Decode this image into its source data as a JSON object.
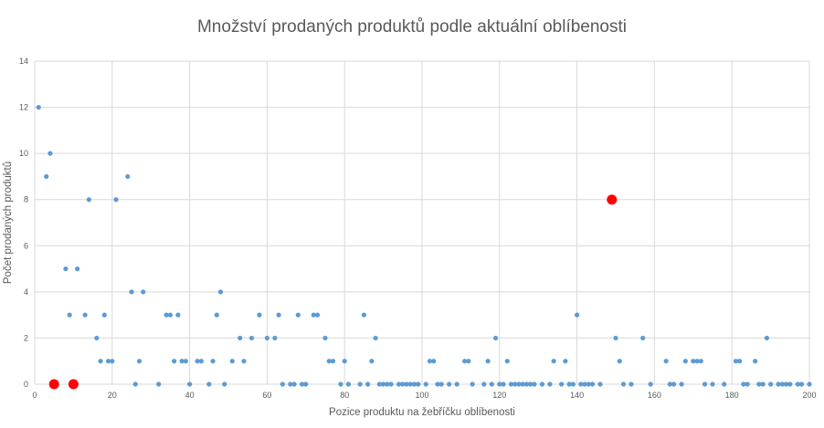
{
  "chart_data": {
    "type": "scatter",
    "title": "Množství prodaných produktů podle aktuální oblíbenosti",
    "xlabel": "Pozice produktu na žebříčku oblíbenosti",
    "ylabel": "Počet prodaných produktů",
    "xlim": [
      0,
      200
    ],
    "ylim": [
      0,
      14
    ],
    "x_ticks": [
      0,
      20,
      40,
      60,
      80,
      100,
      120,
      140,
      160,
      180,
      200
    ],
    "y_ticks": [
      0,
      2,
      4,
      6,
      8,
      10,
      12,
      14
    ],
    "grid": true,
    "colors": {
      "series": "#5b9bd5",
      "highlight": "#ff0000",
      "grid": "#d9d9d9",
      "text": "#595959"
    },
    "series": [
      {
        "points": [
          [
            1,
            12
          ],
          [
            3,
            9
          ],
          [
            4,
            10
          ],
          [
            8,
            5
          ],
          [
            9,
            3
          ],
          [
            11,
            5
          ],
          [
            13,
            3
          ],
          [
            14,
            8
          ],
          [
            16,
            2
          ],
          [
            17,
            1
          ],
          [
            18,
            3
          ],
          [
            19,
            1
          ],
          [
            20,
            1
          ],
          [
            21,
            8
          ],
          [
            24,
            9
          ],
          [
            25,
            4
          ],
          [
            26,
            0
          ],
          [
            27,
            1
          ],
          [
            28,
            4
          ],
          [
            32,
            0
          ],
          [
            34,
            3
          ],
          [
            35,
            3
          ],
          [
            36,
            1
          ],
          [
            37,
            3
          ],
          [
            38,
            1
          ],
          [
            39,
            1
          ],
          [
            40,
            0
          ],
          [
            42,
            1
          ],
          [
            43,
            1
          ],
          [
            45,
            0
          ],
          [
            46,
            1
          ],
          [
            47,
            3
          ],
          [
            48,
            4
          ],
          [
            49,
            0
          ],
          [
            51,
            1
          ],
          [
            53,
            2
          ],
          [
            54,
            1
          ],
          [
            56,
            2
          ],
          [
            58,
            3
          ],
          [
            60,
            2
          ],
          [
            62,
            2
          ],
          [
            63,
            3
          ],
          [
            64,
            0
          ],
          [
            66,
            0
          ],
          [
            67,
            0
          ],
          [
            68,
            3
          ],
          [
            69,
            0
          ],
          [
            70,
            0
          ],
          [
            72,
            3
          ],
          [
            73,
            3
          ],
          [
            75,
            2
          ],
          [
            76,
            1
          ],
          [
            77,
            1
          ],
          [
            79,
            0
          ],
          [
            80,
            1
          ],
          [
            81,
            0
          ],
          [
            84,
            0
          ],
          [
            85,
            3
          ],
          [
            86,
            0
          ],
          [
            87,
            1
          ],
          [
            88,
            2
          ],
          [
            89,
            0
          ],
          [
            90,
            0
          ],
          [
            91,
            0
          ],
          [
            92,
            0
          ],
          [
            94,
            0
          ],
          [
            95,
            0
          ],
          [
            96,
            0
          ],
          [
            97,
            0
          ],
          [
            98,
            0
          ],
          [
            99,
            0
          ],
          [
            101,
            0
          ],
          [
            102,
            1
          ],
          [
            103,
            1
          ],
          [
            104,
            0
          ],
          [
            105,
            0
          ],
          [
            107,
            0
          ],
          [
            109,
            0
          ],
          [
            111,
            1
          ],
          [
            112,
            1
          ],
          [
            113,
            0
          ],
          [
            116,
            0
          ],
          [
            117,
            1
          ],
          [
            118,
            0
          ],
          [
            119,
            2
          ],
          [
            120,
            0
          ],
          [
            121,
            0
          ],
          [
            122,
            1
          ],
          [
            123,
            0
          ],
          [
            124,
            0
          ],
          [
            125,
            0
          ],
          [
            126,
            0
          ],
          [
            127,
            0
          ],
          [
            128,
            0
          ],
          [
            129,
            0
          ],
          [
            131,
            0
          ],
          [
            133,
            0
          ],
          [
            134,
            1
          ],
          [
            136,
            0
          ],
          [
            137,
            1
          ],
          [
            138,
            0
          ],
          [
            139,
            0
          ],
          [
            140,
            3
          ],
          [
            141,
            0
          ],
          [
            142,
            0
          ],
          [
            143,
            0
          ],
          [
            144,
            0
          ],
          [
            146,
            0
          ],
          [
            150,
            2
          ],
          [
            151,
            1
          ],
          [
            152,
            0
          ],
          [
            154,
            0
          ],
          [
            157,
            2
          ],
          [
            159,
            0
          ],
          [
            163,
            1
          ],
          [
            164,
            0
          ],
          [
            165,
            0
          ],
          [
            167,
            0
          ],
          [
            168,
            1
          ],
          [
            170,
            1
          ],
          [
            171,
            1
          ],
          [
            172,
            1
          ],
          [
            173,
            0
          ],
          [
            175,
            0
          ],
          [
            178,
            0
          ],
          [
            181,
            1
          ],
          [
            182,
            1
          ],
          [
            183,
            0
          ],
          [
            184,
            0
          ],
          [
            186,
            1
          ],
          [
            187,
            0
          ],
          [
            188,
            0
          ],
          [
            189,
            2
          ],
          [
            190,
            0
          ],
          [
            192,
            0
          ],
          [
            193,
            0
          ],
          [
            194,
            0
          ],
          [
            195,
            0
          ],
          [
            197,
            0
          ],
          [
            198,
            0
          ],
          [
            200,
            0
          ]
        ]
      },
      {
        "highlight": true,
        "points": [
          [
            5,
            0
          ],
          [
            10,
            0
          ],
          [
            149,
            8
          ]
        ]
      }
    ]
  }
}
